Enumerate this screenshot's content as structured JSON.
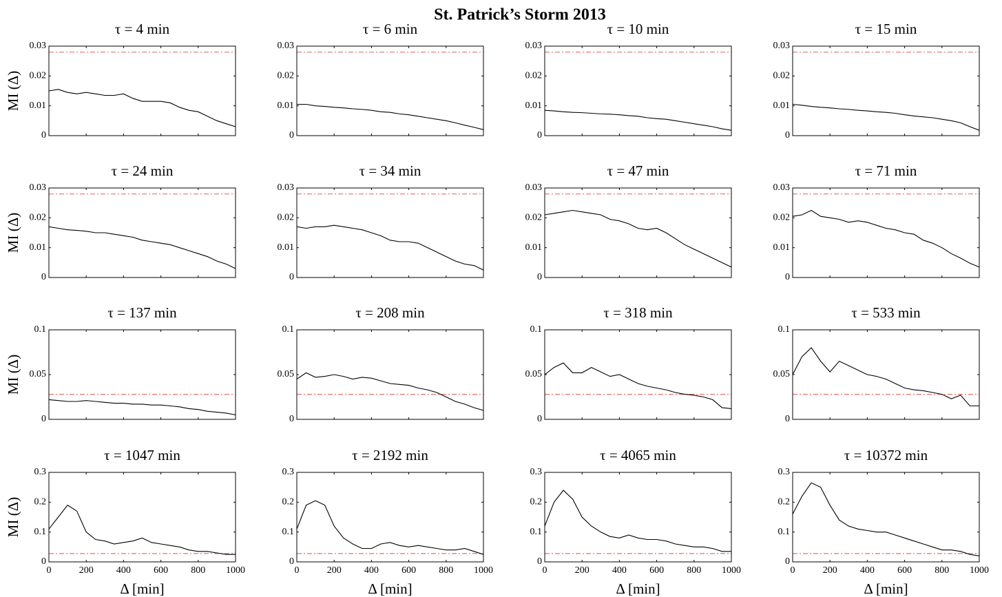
{
  "title": "St. Patrick’s Storm 2013",
  "chart_data": [
    {
      "type": "line",
      "title": "τ = 4 min",
      "ylabel": "MI (Δ)",
      "x": [
        0,
        50,
        100,
        150,
        200,
        250,
        300,
        350,
        400,
        450,
        500,
        550,
        600,
        650,
        700,
        750,
        800,
        850,
        900,
        950,
        1000
      ],
      "series": [
        {
          "color": "#000000",
          "values": [
            0.015,
            0.0155,
            0.0145,
            0.014,
            0.0145,
            0.014,
            0.0135,
            0.0135,
            0.014,
            0.0125,
            0.0115,
            0.0115,
            0.0115,
            0.011,
            0.0095,
            0.0085,
            0.008,
            0.0065,
            0.005,
            0.004,
            0.003
          ]
        }
      ],
      "xlim": [
        0,
        1000
      ],
      "xticks": [
        0,
        200,
        400,
        600,
        800,
        1000
      ],
      "ylim": [
        0,
        0.03
      ],
      "yticks": [
        0,
        0.01,
        0.02,
        0.03
      ],
      "reference_line": {
        "value": 0.028,
        "color": "#e8706f"
      }
    },
    {
      "type": "line",
      "title": "τ = 6 min",
      "x": [
        0,
        50,
        100,
        150,
        200,
        250,
        300,
        350,
        400,
        450,
        500,
        550,
        600,
        650,
        700,
        750,
        800,
        850,
        900,
        950,
        1000
      ],
      "series": [
        {
          "color": "#000000",
          "values": [
            0.0105,
            0.0105,
            0.01,
            0.0098,
            0.0095,
            0.0093,
            0.009,
            0.0088,
            0.0085,
            0.008,
            0.0078,
            0.0073,
            0.007,
            0.0065,
            0.006,
            0.0055,
            0.005,
            0.0043,
            0.0035,
            0.0028,
            0.002
          ]
        }
      ],
      "xlim": [
        0,
        1000
      ],
      "xticks": [
        0,
        200,
        400,
        600,
        800,
        1000
      ],
      "ylim": [
        0,
        0.03
      ],
      "yticks": [
        0,
        0.01,
        0.02,
        0.03
      ],
      "reference_line": {
        "value": 0.028,
        "color": "#e8706f"
      }
    },
    {
      "type": "line",
      "title": "τ = 10 min",
      "x": [
        0,
        50,
        100,
        150,
        200,
        250,
        300,
        350,
        400,
        450,
        500,
        550,
        600,
        650,
        700,
        750,
        800,
        850,
        900,
        950,
        1000
      ],
      "series": [
        {
          "color": "#000000",
          "values": [
            0.0085,
            0.0083,
            0.008,
            0.0078,
            0.0077,
            0.0075,
            0.0073,
            0.0072,
            0.007,
            0.0067,
            0.0065,
            0.006,
            0.0057,
            0.0055,
            0.005,
            0.0045,
            0.004,
            0.0035,
            0.003,
            0.0023,
            0.0018
          ]
        }
      ],
      "xlim": [
        0,
        1000
      ],
      "xticks": [
        0,
        200,
        400,
        600,
        800,
        1000
      ],
      "ylim": [
        0,
        0.03
      ],
      "yticks": [
        0,
        0.01,
        0.02,
        0.03
      ],
      "reference_line": {
        "value": 0.028,
        "color": "#e8706f"
      }
    },
    {
      "type": "line",
      "title": "τ = 15 min",
      "x": [
        0,
        50,
        100,
        150,
        200,
        250,
        300,
        350,
        400,
        450,
        500,
        550,
        600,
        650,
        700,
        750,
        800,
        850,
        900,
        950,
        1000
      ],
      "series": [
        {
          "color": "#000000",
          "values": [
            0.0105,
            0.0102,
            0.0098,
            0.0095,
            0.0093,
            0.009,
            0.0088,
            0.0085,
            0.0083,
            0.008,
            0.0078,
            0.0075,
            0.007,
            0.0066,
            0.0063,
            0.006,
            0.0055,
            0.005,
            0.0043,
            0.003,
            0.0018
          ]
        }
      ],
      "xlim": [
        0,
        1000
      ],
      "xticks": [
        0,
        200,
        400,
        600,
        800,
        1000
      ],
      "ylim": [
        0,
        0.03
      ],
      "yticks": [
        0,
        0.01,
        0.02,
        0.03
      ],
      "reference_line": {
        "value": 0.028,
        "color": "#e8706f"
      }
    },
    {
      "type": "line",
      "title": "τ = 24 min",
      "ylabel": "MI (Δ)",
      "x": [
        0,
        50,
        100,
        150,
        200,
        250,
        300,
        350,
        400,
        450,
        500,
        550,
        600,
        650,
        700,
        750,
        800,
        850,
        900,
        950,
        1000
      ],
      "series": [
        {
          "color": "#000000",
          "values": [
            0.017,
            0.0165,
            0.016,
            0.0158,
            0.0155,
            0.015,
            0.015,
            0.0145,
            0.014,
            0.0135,
            0.0125,
            0.012,
            0.0115,
            0.011,
            0.01,
            0.009,
            0.008,
            0.007,
            0.0055,
            0.0045,
            0.003
          ]
        }
      ],
      "xlim": [
        0,
        1000
      ],
      "xticks": [
        0,
        200,
        400,
        600,
        800,
        1000
      ],
      "ylim": [
        0,
        0.03
      ],
      "yticks": [
        0,
        0.01,
        0.02,
        0.03
      ],
      "reference_line": {
        "value": 0.028,
        "color": "#e8706f"
      }
    },
    {
      "type": "line",
      "title": "τ = 34 min",
      "x": [
        0,
        50,
        100,
        150,
        200,
        250,
        300,
        350,
        400,
        450,
        500,
        550,
        600,
        650,
        700,
        750,
        800,
        850,
        900,
        950,
        1000
      ],
      "series": [
        {
          "color": "#000000",
          "values": [
            0.017,
            0.0165,
            0.017,
            0.017,
            0.0175,
            0.017,
            0.0165,
            0.016,
            0.015,
            0.014,
            0.0125,
            0.012,
            0.012,
            0.0115,
            0.01,
            0.0085,
            0.007,
            0.0055,
            0.0045,
            0.004,
            0.0025
          ]
        }
      ],
      "xlim": [
        0,
        1000
      ],
      "xticks": [
        0,
        200,
        400,
        600,
        800,
        1000
      ],
      "ylim": [
        0,
        0.03
      ],
      "yticks": [
        0,
        0.01,
        0.02,
        0.03
      ],
      "reference_line": {
        "value": 0.028,
        "color": "#e8706f"
      }
    },
    {
      "type": "line",
      "title": "τ = 47 min",
      "x": [
        0,
        50,
        100,
        150,
        200,
        250,
        300,
        350,
        400,
        450,
        500,
        550,
        600,
        650,
        700,
        750,
        800,
        850,
        900,
        950,
        1000
      ],
      "series": [
        {
          "color": "#000000",
          "values": [
            0.021,
            0.0215,
            0.022,
            0.0225,
            0.022,
            0.0215,
            0.021,
            0.0195,
            0.019,
            0.018,
            0.0165,
            0.016,
            0.0165,
            0.015,
            0.013,
            0.011,
            0.0095,
            0.008,
            0.0065,
            0.005,
            0.0035
          ]
        }
      ],
      "xlim": [
        0,
        1000
      ],
      "xticks": [
        0,
        200,
        400,
        600,
        800,
        1000
      ],
      "ylim": [
        0,
        0.03
      ],
      "yticks": [
        0,
        0.01,
        0.02,
        0.03
      ],
      "reference_line": {
        "value": 0.028,
        "color": "#e8706f"
      }
    },
    {
      "type": "line",
      "title": "τ = 71 min",
      "x": [
        0,
        50,
        100,
        150,
        200,
        250,
        300,
        350,
        400,
        450,
        500,
        550,
        600,
        650,
        700,
        750,
        800,
        850,
        900,
        950,
        1000
      ],
      "series": [
        {
          "color": "#000000",
          "values": [
            0.0205,
            0.021,
            0.0225,
            0.0205,
            0.02,
            0.0195,
            0.0185,
            0.019,
            0.0185,
            0.0175,
            0.0165,
            0.016,
            0.015,
            0.0145,
            0.0125,
            0.0115,
            0.01,
            0.008,
            0.0065,
            0.0048,
            0.0035
          ]
        }
      ],
      "xlim": [
        0,
        1000
      ],
      "xticks": [
        0,
        200,
        400,
        600,
        800,
        1000
      ],
      "ylim": [
        0,
        0.03
      ],
      "yticks": [
        0,
        0.01,
        0.02,
        0.03
      ],
      "reference_line": {
        "value": 0.028,
        "color": "#e8706f"
      }
    },
    {
      "type": "line",
      "title": "τ = 137 min",
      "ylabel": "MI (Δ)",
      "x": [
        0,
        50,
        100,
        150,
        200,
        250,
        300,
        350,
        400,
        450,
        500,
        550,
        600,
        650,
        700,
        750,
        800,
        850,
        900,
        950,
        1000
      ],
      "series": [
        {
          "color": "#000000",
          "values": [
            0.022,
            0.021,
            0.02,
            0.02,
            0.021,
            0.02,
            0.019,
            0.018,
            0.018,
            0.017,
            0.017,
            0.016,
            0.016,
            0.015,
            0.014,
            0.012,
            0.011,
            0.009,
            0.008,
            0.007,
            0.005
          ]
        }
      ],
      "xlim": [
        0,
        1000
      ],
      "xticks": [
        0,
        200,
        400,
        600,
        800,
        1000
      ],
      "ylim": [
        0,
        0.1
      ],
      "yticks": [
        0,
        0.05,
        0.1
      ],
      "reference_line": {
        "value": 0.028,
        "color": "#e8706f"
      }
    },
    {
      "type": "line",
      "title": "τ = 208 min",
      "x": [
        0,
        50,
        100,
        150,
        200,
        250,
        300,
        350,
        400,
        450,
        500,
        550,
        600,
        650,
        700,
        750,
        800,
        850,
        900,
        950,
        1000
      ],
      "series": [
        {
          "color": "#000000",
          "values": [
            0.045,
            0.052,
            0.047,
            0.048,
            0.05,
            0.048,
            0.045,
            0.047,
            0.046,
            0.043,
            0.04,
            0.039,
            0.038,
            0.035,
            0.033,
            0.03,
            0.025,
            0.02,
            0.017,
            0.013,
            0.01
          ]
        }
      ],
      "xlim": [
        0,
        1000
      ],
      "xticks": [
        0,
        200,
        400,
        600,
        800,
        1000
      ],
      "ylim": [
        0,
        0.1
      ],
      "yticks": [
        0,
        0.05,
        0.1
      ],
      "reference_line": {
        "value": 0.028,
        "color": "#e8706f"
      }
    },
    {
      "type": "line",
      "title": "τ = 318 min",
      "x": [
        0,
        50,
        100,
        150,
        200,
        250,
        300,
        350,
        400,
        450,
        500,
        550,
        600,
        650,
        700,
        750,
        800,
        850,
        900,
        950,
        1000
      ],
      "series": [
        {
          "color": "#000000",
          "values": [
            0.05,
            0.058,
            0.063,
            0.052,
            0.052,
            0.058,
            0.053,
            0.048,
            0.05,
            0.045,
            0.04,
            0.037,
            0.035,
            0.033,
            0.03,
            0.028,
            0.027,
            0.025,
            0.022,
            0.013,
            0.012
          ]
        }
      ],
      "xlim": [
        0,
        1000
      ],
      "xticks": [
        0,
        200,
        400,
        600,
        800,
        1000
      ],
      "ylim": [
        0,
        0.1
      ],
      "yticks": [
        0,
        0.05,
        0.1
      ],
      "reference_line": {
        "value": 0.028,
        "color": "#e8706f"
      }
    },
    {
      "type": "line",
      "title": "τ = 533 min",
      "x": [
        0,
        50,
        100,
        150,
        200,
        250,
        300,
        350,
        400,
        450,
        500,
        550,
        600,
        650,
        700,
        750,
        800,
        850,
        900,
        950,
        1000
      ],
      "series": [
        {
          "color": "#000000",
          "values": [
            0.05,
            0.07,
            0.08,
            0.065,
            0.053,
            0.065,
            0.06,
            0.055,
            0.05,
            0.048,
            0.045,
            0.04,
            0.035,
            0.033,
            0.032,
            0.03,
            0.028,
            0.023,
            0.027,
            0.015,
            0.015
          ]
        }
      ],
      "xlim": [
        0,
        1000
      ],
      "xticks": [
        0,
        200,
        400,
        600,
        800,
        1000
      ],
      "ylim": [
        0,
        0.1
      ],
      "yticks": [
        0,
        0.05,
        0.1
      ],
      "reference_line": {
        "value": 0.028,
        "color": "#e8706f"
      }
    },
    {
      "type": "line",
      "title": "τ = 1047 min",
      "ylabel": "MI (Δ)",
      "xlabel": "Δ [min]",
      "x": [
        0,
        50,
        100,
        150,
        200,
        250,
        300,
        350,
        400,
        450,
        500,
        550,
        600,
        650,
        700,
        750,
        800,
        850,
        900,
        950,
        1000
      ],
      "series": [
        {
          "color": "#000000",
          "values": [
            0.11,
            0.15,
            0.19,
            0.17,
            0.1,
            0.075,
            0.07,
            0.06,
            0.065,
            0.07,
            0.08,
            0.065,
            0.06,
            0.055,
            0.05,
            0.04,
            0.035,
            0.035,
            0.03,
            0.025,
            0.025
          ]
        }
      ],
      "xlim": [
        0,
        1000
      ],
      "xticks": [
        0,
        200,
        400,
        600,
        800,
        1000
      ],
      "ylim": [
        0,
        0.3
      ],
      "yticks": [
        0,
        0.1,
        0.2,
        0.3
      ],
      "reference_line": {
        "value": 0.028,
        "color": "#e8706f"
      }
    },
    {
      "type": "line",
      "title": "τ = 2192 min",
      "xlabel": "Δ [min]",
      "x": [
        0,
        50,
        100,
        150,
        200,
        250,
        300,
        350,
        400,
        450,
        500,
        550,
        600,
        650,
        700,
        750,
        800,
        850,
        900,
        950,
        1000
      ],
      "series": [
        {
          "color": "#000000",
          "values": [
            0.11,
            0.19,
            0.205,
            0.19,
            0.12,
            0.08,
            0.06,
            0.045,
            0.045,
            0.06,
            0.065,
            0.055,
            0.05,
            0.055,
            0.05,
            0.045,
            0.04,
            0.04,
            0.045,
            0.035,
            0.025
          ]
        }
      ],
      "xlim": [
        0,
        1000
      ],
      "xticks": [
        0,
        200,
        400,
        600,
        800,
        1000
      ],
      "ylim": [
        0,
        0.3
      ],
      "yticks": [
        0,
        0.1,
        0.2,
        0.3
      ],
      "reference_line": {
        "value": 0.028,
        "color": "#e8706f"
      }
    },
    {
      "type": "line",
      "title": "τ = 4065 min",
      "xlabel": "Δ [min]",
      "x": [
        0,
        50,
        100,
        150,
        200,
        250,
        300,
        350,
        400,
        450,
        500,
        550,
        600,
        650,
        700,
        750,
        800,
        850,
        900,
        950,
        1000
      ],
      "series": [
        {
          "color": "#000000",
          "values": [
            0.12,
            0.2,
            0.24,
            0.21,
            0.15,
            0.12,
            0.1,
            0.085,
            0.08,
            0.09,
            0.08,
            0.075,
            0.075,
            0.07,
            0.06,
            0.055,
            0.05,
            0.05,
            0.045,
            0.035,
            0.035
          ]
        }
      ],
      "xlim": [
        0,
        1000
      ],
      "xticks": [
        0,
        200,
        400,
        600,
        800,
        1000
      ],
      "ylim": [
        0,
        0.3
      ],
      "yticks": [
        0,
        0.1,
        0.2,
        0.3
      ],
      "reference_line": {
        "value": 0.028,
        "color": "#e8706f"
      }
    },
    {
      "type": "line",
      "title": "τ = 10372 min",
      "xlabel": "Δ [min]",
      "x": [
        0,
        50,
        100,
        150,
        200,
        250,
        300,
        350,
        400,
        450,
        500,
        550,
        600,
        650,
        700,
        750,
        800,
        850,
        900,
        950,
        1000
      ],
      "series": [
        {
          "color": "#000000",
          "values": [
            0.16,
            0.22,
            0.265,
            0.25,
            0.19,
            0.14,
            0.12,
            0.11,
            0.105,
            0.1,
            0.1,
            0.09,
            0.08,
            0.07,
            0.06,
            0.05,
            0.04,
            0.04,
            0.035,
            0.025,
            0.02
          ]
        }
      ],
      "xlim": [
        0,
        1000
      ],
      "xticks": [
        0,
        200,
        400,
        600,
        800,
        1000
      ],
      "ylim": [
        0,
        0.3
      ],
      "yticks": [
        0,
        0.1,
        0.2,
        0.3
      ],
      "reference_line": {
        "value": 0.028,
        "color": "#e8706f"
      }
    }
  ]
}
